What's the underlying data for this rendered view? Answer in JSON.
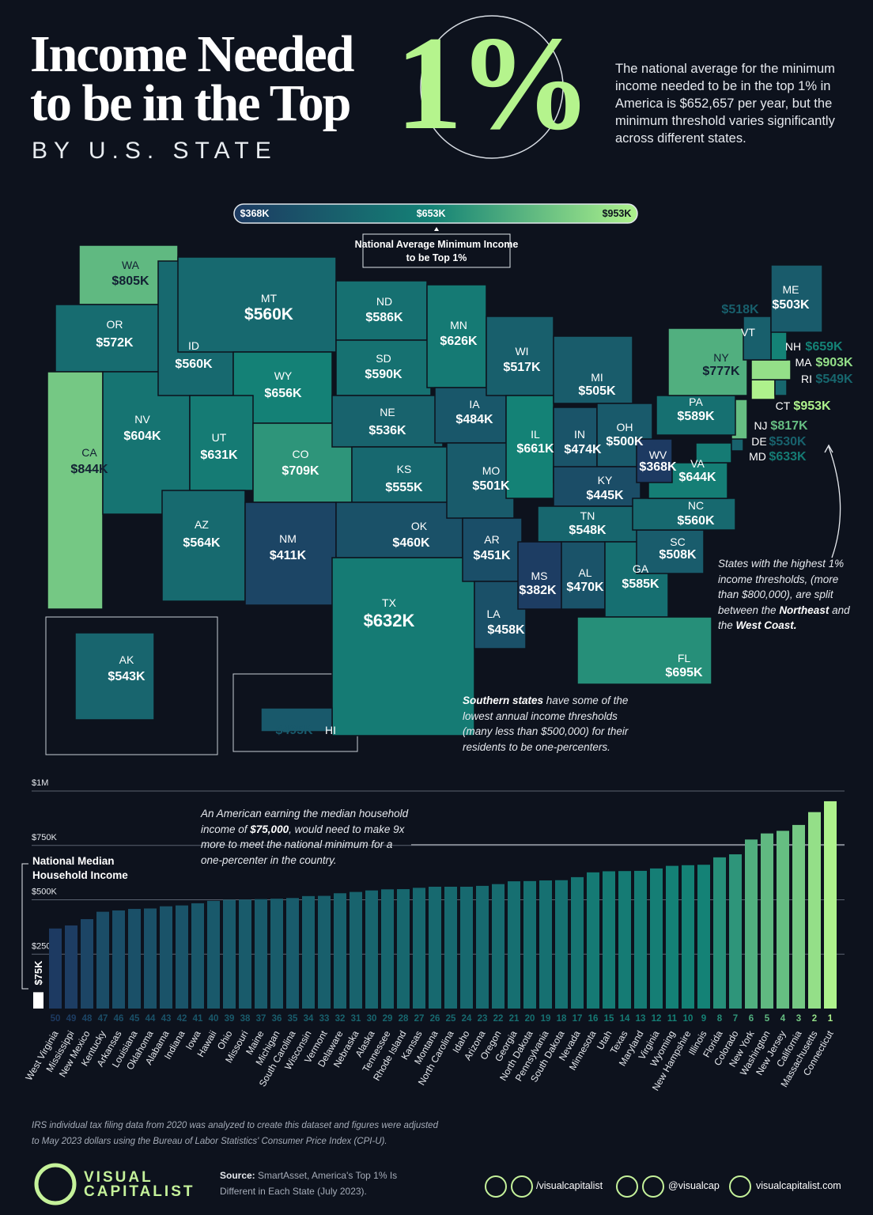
{
  "header": {
    "title_lines": [
      "Income Needed",
      "to be in the Top"
    ],
    "title_highlight": "1%",
    "subtitle": "BY U.S. STATE",
    "intro": "The national average for the minimum income needed to be in the top 1% in America is $652,657 per year, but the minimum threshold varies significantly across different states."
  },
  "chart_data": [
    {
      "type": "choropleth",
      "scale_title": "National Average Minimum Income to be Top 1%",
      "scale_ticks": [
        {
          "value": 368000,
          "label": "$368K"
        },
        {
          "value": 653000,
          "label": "$653K"
        },
        {
          "value": 953000,
          "label": "$953K"
        }
      ],
      "colors": [
        "#1d3a62",
        "#148276",
        "#aef28c"
      ],
      "states": [
        "WA",
        "OR",
        "CA",
        "NV",
        "ID",
        "MT",
        "WY",
        "UT",
        "CO",
        "AZ",
        "NM",
        "ND",
        "SD",
        "NE",
        "KS",
        "OK",
        "TX",
        "MN",
        "IA",
        "MO",
        "AR",
        "LA",
        "WI",
        "IL",
        "MI",
        "IN",
        "OH",
        "KY",
        "TN",
        "MS",
        "AL",
        "GA",
        "FL",
        "SC",
        "NC",
        "VA",
        "WV",
        "MD",
        "DE",
        "NJ",
        "PA",
        "NY",
        "CT",
        "RI",
        "MA",
        "NH",
        "VT",
        "ME",
        "AK",
        "HI"
      ],
      "values": [
        805000,
        572000,
        844000,
        604000,
        560000,
        560000,
        656000,
        631000,
        709000,
        564000,
        411000,
        586000,
        590000,
        536000,
        555000,
        460000,
        632000,
        626000,
        484000,
        501000,
        451000,
        458000,
        517000,
        661000,
        505000,
        474000,
        500000,
        445000,
        548000,
        382000,
        470000,
        585000,
        695000,
        508000,
        560000,
        644000,
        368000,
        633000,
        530000,
        817000,
        589000,
        777000,
        953000,
        549000,
        903000,
        659000,
        518000,
        503000,
        543000,
        495000
      ],
      "value_labels": [
        "$805K",
        "$572K",
        "$844K",
        "$604K",
        "$560K",
        "$560K",
        "$656K",
        "$631K",
        "$709K",
        "$564K",
        "$411K",
        "$586K",
        "$590K",
        "$536K",
        "$555K",
        "$460K",
        "$632K",
        "$626K",
        "$484K",
        "$501K",
        "$451K",
        "$458K",
        "$517K",
        "$661K",
        "$505K",
        "$474K",
        "$500K",
        "$445K",
        "$548K",
        "$382K",
        "$470K",
        "$585K",
        "$695K",
        "$508K",
        "$560K",
        "$644K",
        "$368K",
        "$633K",
        "$530K",
        "$817K",
        "$589K",
        "$777K",
        "$953K",
        "$549K",
        "$903K",
        "$659K",
        "$518K",
        "$503K",
        "$543K",
        "$495K"
      ],
      "annotations": [
        [
          "States with the highest 1% income thresholds, (more than $800,000), are split between the ",
          "Northeast",
          " and the ",
          "West Coast."
        ],
        [
          "Southern states",
          " have some of the lowest annual income thresholds (many less than $500,000) for their residents to be one-percenters."
        ]
      ]
    },
    {
      "type": "bar",
      "categories": [
        "West Virginia",
        "Mississippi",
        "New Mexico",
        "Kentucky",
        "Arkansas",
        "Louisiana",
        "Oklahoma",
        "Alabama",
        "Indiana",
        "Iowa",
        "Hawaii",
        "Ohio",
        "Missouri",
        "Maine",
        "Michigan",
        "South Carolina",
        "Wisconsin",
        "Vermont",
        "Delaware",
        "Nebraska",
        "Alaska",
        "Tennessee",
        "Rhode Island",
        "Kansas",
        "Montana",
        "North Carolina",
        "Idaho",
        "Arizona",
        "Oregon",
        "Georgia",
        "North Dakota",
        "Pennsylvania",
        "South Dakota",
        "Nevada",
        "Minnesota",
        "Utah",
        "Texas",
        "Maryland",
        "Virginia",
        "Wyoming",
        "New Hampshire",
        "Illinois",
        "Florida",
        "Colorado",
        "New York",
        "Washington",
        "New Jersey",
        "California",
        "Massachusetts",
        "Connecticut"
      ],
      "values": [
        368000,
        382000,
        411000,
        445000,
        451000,
        458000,
        460000,
        470000,
        474000,
        484000,
        495000,
        500000,
        501000,
        503000,
        505000,
        508000,
        517000,
        518000,
        530000,
        536000,
        543000,
        548000,
        549000,
        555000,
        560000,
        560000,
        560000,
        564000,
        572000,
        585000,
        586000,
        589000,
        590000,
        604000,
        626000,
        631000,
        632000,
        633000,
        644000,
        656000,
        659000,
        661000,
        695000,
        709000,
        777000,
        805000,
        817000,
        844000,
        903000,
        953000
      ],
      "ranks": [
        50,
        49,
        48,
        47,
        46,
        45,
        44,
        43,
        42,
        41,
        40,
        39,
        38,
        37,
        36,
        35,
        34,
        33,
        32,
        31,
        30,
        29,
        28,
        27,
        26,
        25,
        24,
        23,
        22,
        21,
        20,
        19,
        18,
        17,
        16,
        15,
        14,
        13,
        12,
        11,
        10,
        9,
        8,
        7,
        6,
        5,
        4,
        3,
        2,
        1
      ],
      "colors": [
        "#1d3a62",
        "#148276",
        "#aef28c"
      ],
      "ylim": [
        0,
        1000000
      ],
      "yticks": [
        {
          "value": 250000,
          "label": "$250K"
        },
        {
          "value": 500000,
          "label": "$500K"
        },
        {
          "value": 750000,
          "label": "$750K"
        },
        {
          "value": 1000000,
          "label": "$1M"
        }
      ],
      "grid": true,
      "reference": {
        "name": "National Median Household Income",
        "value": 75000,
        "label": "$75K"
      },
      "annotation": [
        "An American earning the median household income of ",
        "$75,000",
        ", would need to make 9x more to meet the national minimum for a one-percenter in the country."
      ]
    }
  ],
  "footer": {
    "note": "IRS individual tax filing data from 2020 was analyzed to create this dataset and figures were adjusted to May 2023 dollars using the Bureau of Labor Statistics' Consumer Price Index (CPI-U).",
    "logo": [
      "VISUAL",
      "CAPITALIST"
    ],
    "source_label": "Source:",
    "source": "SmartAsset, America's Top 1% Is Different in Each State (July 2023).",
    "socials": [
      "/visualcapitalist",
      "@visualcap",
      "visualcapitalist.com"
    ]
  }
}
